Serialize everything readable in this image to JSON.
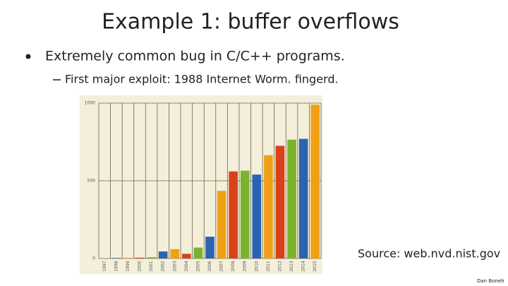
{
  "slide": {
    "title": "Example 1:   buffer overflows",
    "bullet": "Extremely common bug in C/C++ programs.",
    "sub_bullet": "First major exploit:  1988 Internet Worm.   fingerd.",
    "source": "Source:  web.nvd.nist.gov",
    "author": "Dan Boneh"
  },
  "chart_data": {
    "type": "bar",
    "categories": [
      "1997",
      "1998",
      "1999",
      "2000",
      "2001",
      "2002",
      "2003",
      "2004",
      "2005",
      "2006",
      "2007",
      "2008",
      "2009",
      "2010",
      "2011",
      "2012",
      "2013",
      "2014",
      "2015"
    ],
    "values": [
      2,
      3,
      4,
      5,
      8,
      45,
      60,
      30,
      70,
      140,
      435,
      560,
      565,
      540,
      665,
      725,
      765,
      770,
      990
    ],
    "colors": [
      "#7ab32e",
      "#2a63b0",
      "#f0a015",
      "#d8421a",
      "#7ab32e",
      "#2a63b0",
      "#f0a015",
      "#d8421a",
      "#7ab32e",
      "#2a63b0",
      "#f0a015",
      "#d8421a",
      "#7ab32e",
      "#2a63b0",
      "#f0a015",
      "#d8421a",
      "#7ab32e",
      "#2a63b0",
      "#f0a015"
    ],
    "ylim": [
      0,
      1000
    ],
    "yticks": [
      0,
      500,
      1000
    ],
    "grid": true
  }
}
